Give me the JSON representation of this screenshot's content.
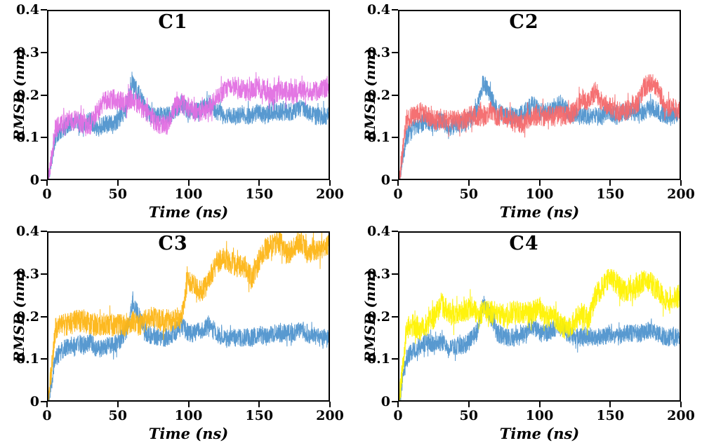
{
  "figure": {
    "background": "#ffffff",
    "axis_color": "#000000",
    "layout": "2x2 grid of RMSD vs Time line plots, no legend, no grid"
  },
  "chart_data": [
    {
      "type": "line",
      "title": "C1",
      "xlabel": "Time (ns)",
      "ylabel": "RMSD (nm)",
      "xlim": [
        0,
        200
      ],
      "ylim": [
        0,
        0.4
      ],
      "xticks": [
        0,
        50,
        100,
        150,
        200
      ],
      "yticks": [
        0,
        0.1,
        0.2,
        0.3,
        0.4
      ],
      "grid": false,
      "legend": "none",
      "series": [
        {
          "name": "blue",
          "color": "#4F94CE",
          "x_step": 5,
          "noise": 0.022,
          "values": [
            0,
            0.1,
            0.12,
            0.13,
            0.14,
            0.13,
            0.14,
            0.12,
            0.13,
            0.13,
            0.14,
            0.16,
            0.23,
            0.2,
            0.16,
            0.15,
            0.15,
            0.15,
            0.16,
            0.18,
            0.16,
            0.16,
            0.17,
            0.18,
            0.16,
            0.15,
            0.15,
            0.15,
            0.15,
            0.15,
            0.16,
            0.15,
            0.16,
            0.16,
            0.16,
            0.16,
            0.17,
            0.16,
            0.15,
            0.15,
            0.15
          ]
        },
        {
          "name": "violet",
          "color": "#E16FE1",
          "x_step": 5,
          "noise": 0.025,
          "values": [
            0,
            0.12,
            0.13,
            0.14,
            0.14,
            0.13,
            0.13,
            0.16,
            0.19,
            0.19,
            0.19,
            0.18,
            0.19,
            0.18,
            0.16,
            0.14,
            0.13,
            0.13,
            0.17,
            0.18,
            0.17,
            0.16,
            0.16,
            0.17,
            0.19,
            0.21,
            0.22,
            0.22,
            0.21,
            0.21,
            0.22,
            0.21,
            0.2,
            0.21,
            0.21,
            0.2,
            0.21,
            0.21,
            0.21,
            0.21,
            0.22
          ]
        }
      ]
    },
    {
      "type": "line",
      "title": "C2",
      "xlabel": "Time (ns)",
      "ylabel": "RMSD (nm)",
      "xlim": [
        0,
        200
      ],
      "ylim": [
        0,
        0.4
      ],
      "xticks": [
        0,
        50,
        100,
        150,
        200
      ],
      "yticks": [
        0,
        0.1,
        0.2,
        0.3,
        0.4
      ],
      "grid": false,
      "legend": "none",
      "series": [
        {
          "name": "blue",
          "color": "#4F94CE",
          "x_step": 5,
          "noise": 0.022,
          "values": [
            0,
            0.1,
            0.12,
            0.13,
            0.14,
            0.13,
            0.14,
            0.12,
            0.13,
            0.13,
            0.14,
            0.16,
            0.23,
            0.2,
            0.16,
            0.15,
            0.15,
            0.15,
            0.16,
            0.18,
            0.16,
            0.16,
            0.17,
            0.18,
            0.16,
            0.15,
            0.15,
            0.15,
            0.15,
            0.15,
            0.16,
            0.15,
            0.16,
            0.16,
            0.16,
            0.16,
            0.17,
            0.16,
            0.15,
            0.15,
            0.15
          ]
        },
        {
          "name": "red",
          "color": "#F4696B",
          "x_step": 5,
          "noise": 0.025,
          "values": [
            0,
            0.14,
            0.15,
            0.16,
            0.15,
            0.14,
            0.14,
            0.14,
            0.14,
            0.14,
            0.15,
            0.15,
            0.15,
            0.16,
            0.15,
            0.15,
            0.14,
            0.13,
            0.14,
            0.15,
            0.15,
            0.15,
            0.15,
            0.15,
            0.15,
            0.16,
            0.19,
            0.18,
            0.21,
            0.18,
            0.17,
            0.16,
            0.16,
            0.17,
            0.18,
            0.22,
            0.23,
            0.21,
            0.17,
            0.17,
            0.16
          ]
        }
      ]
    },
    {
      "type": "line",
      "title": "C3",
      "xlabel": "Time (ns)",
      "ylabel": "RMSD (nm)",
      "xlim": [
        0,
        200
      ],
      "ylim": [
        0,
        0.4
      ],
      "xticks": [
        0,
        50,
        100,
        150,
        200
      ],
      "yticks": [
        0,
        0.1,
        0.2,
        0.3,
        0.4
      ],
      "grid": false,
      "legend": "none",
      "series": [
        {
          "name": "blue",
          "color": "#4F94CE",
          "x_step": 5,
          "noise": 0.022,
          "values": [
            0,
            0.1,
            0.12,
            0.13,
            0.14,
            0.13,
            0.14,
            0.12,
            0.13,
            0.13,
            0.14,
            0.16,
            0.23,
            0.2,
            0.16,
            0.15,
            0.15,
            0.15,
            0.16,
            0.18,
            0.16,
            0.16,
            0.17,
            0.18,
            0.16,
            0.15,
            0.15,
            0.15,
            0.15,
            0.15,
            0.16,
            0.15,
            0.16,
            0.16,
            0.16,
            0.16,
            0.17,
            0.16,
            0.15,
            0.15,
            0.15
          ]
        },
        {
          "name": "orange",
          "color": "#FDB515",
          "x_step": 5,
          "noise": 0.028,
          "values": [
            0,
            0.17,
            0.18,
            0.18,
            0.19,
            0.19,
            0.18,
            0.18,
            0.18,
            0.18,
            0.18,
            0.18,
            0.19,
            0.18,
            0.19,
            0.2,
            0.19,
            0.19,
            0.19,
            0.2,
            0.29,
            0.27,
            0.26,
            0.29,
            0.33,
            0.34,
            0.33,
            0.32,
            0.32,
            0.29,
            0.33,
            0.36,
            0.37,
            0.38,
            0.35,
            0.36,
            0.38,
            0.35,
            0.36,
            0.36,
            0.37
          ]
        }
      ]
    },
    {
      "type": "line",
      "title": "C4",
      "xlabel": "Time (ns)",
      "ylabel": "RMSD (nm)",
      "xlim": [
        0,
        200
      ],
      "ylim": [
        0,
        0.4
      ],
      "xticks": [
        0,
        50,
        100,
        150,
        200
      ],
      "yticks": [
        0,
        0.1,
        0.2,
        0.3,
        0.4
      ],
      "grid": false,
      "legend": "none",
      "series": [
        {
          "name": "blue",
          "color": "#4F94CE",
          "x_step": 5,
          "noise": 0.022,
          "values": [
            0,
            0.1,
            0.12,
            0.13,
            0.14,
            0.13,
            0.14,
            0.12,
            0.13,
            0.13,
            0.14,
            0.16,
            0.23,
            0.2,
            0.16,
            0.15,
            0.15,
            0.15,
            0.16,
            0.18,
            0.16,
            0.16,
            0.17,
            0.18,
            0.16,
            0.15,
            0.15,
            0.15,
            0.15,
            0.15,
            0.16,
            0.15,
            0.16,
            0.16,
            0.16,
            0.16,
            0.17,
            0.16,
            0.15,
            0.15,
            0.15
          ]
        },
        {
          "name": "yellow",
          "color": "#FFF200",
          "x_step": 5,
          "noise": 0.028,
          "values": [
            0,
            0.17,
            0.18,
            0.17,
            0.18,
            0.2,
            0.23,
            0.21,
            0.2,
            0.21,
            0.22,
            0.21,
            0.21,
            0.21,
            0.21,
            0.2,
            0.21,
            0.21,
            0.21,
            0.21,
            0.22,
            0.2,
            0.2,
            0.18,
            0.17,
            0.19,
            0.21,
            0.19,
            0.25,
            0.27,
            0.29,
            0.28,
            0.26,
            0.26,
            0.27,
            0.29,
            0.28,
            0.26,
            0.24,
            0.24,
            0.25
          ]
        }
      ]
    }
  ]
}
